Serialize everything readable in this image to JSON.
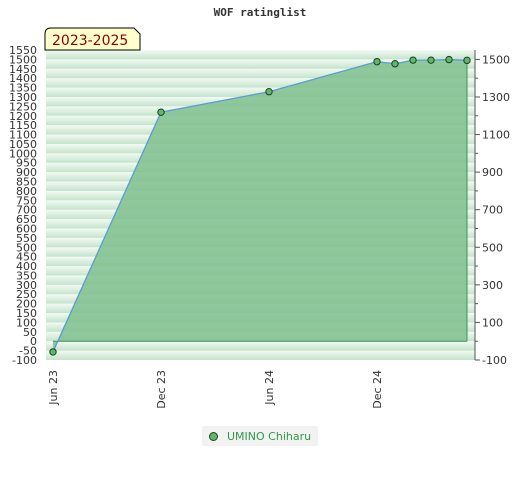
{
  "chart_data": {
    "type": "area",
    "title": "WOF ratinglist",
    "period_label": "2023-2025",
    "x_tick_labels": [
      "Jun 23",
      "Dec 23",
      "Jun 24",
      "Dec 24"
    ],
    "y_left_ticks": [
      -100,
      -50,
      0,
      50,
      100,
      150,
      200,
      250,
      300,
      350,
      400,
      450,
      500,
      550,
      600,
      650,
      700,
      750,
      800,
      850,
      900,
      950,
      1000,
      1050,
      1100,
      1150,
      1200,
      1250,
      1300,
      1350,
      1400,
      1450,
      1500,
      1550
    ],
    "y_right_ticks": [
      -100,
      100,
      300,
      500,
      700,
      900,
      1100,
      1300,
      1500
    ],
    "ylim": [
      -100,
      1550
    ],
    "x_range": [
      "2023-06",
      "2025-06"
    ],
    "series": [
      {
        "name": "UMINO Chiharu",
        "points": [
          {
            "x": "2023-06",
            "y": -57
          },
          {
            "x": "2023-12",
            "y": 1219
          },
          {
            "x": "2024-06",
            "y": 1328
          },
          {
            "x": "2024-12",
            "y": 1488
          },
          {
            "x": "2025-01",
            "y": 1477
          },
          {
            "x": "2025-02",
            "y": 1496
          },
          {
            "x": "2025-03",
            "y": 1496
          },
          {
            "x": "2025-04",
            "y": 1499
          },
          {
            "x": "2025-05",
            "y": 1495
          }
        ]
      }
    ],
    "colors": {
      "line": "#5b9bd5",
      "fill": "#7fc08e",
      "marker": "#5cb86a",
      "grid_light": "#f3faf4",
      "grid_dark": "#c5e3cb"
    },
    "legend_position": "bottom-center",
    "grid": true
  }
}
